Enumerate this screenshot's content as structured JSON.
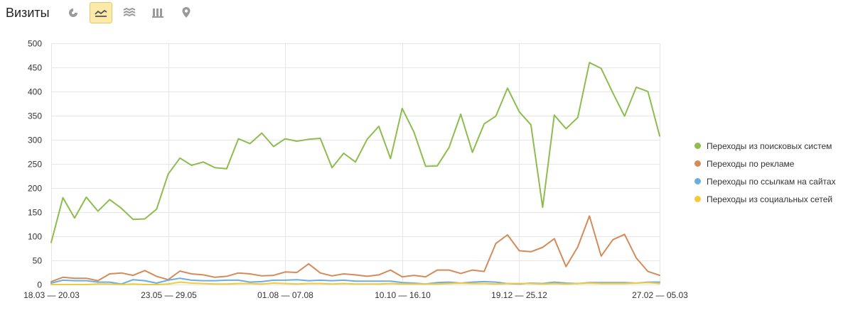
{
  "header": {
    "title": "Визиты",
    "tools": [
      {
        "icon": "pie-chart-icon",
        "active": false
      },
      {
        "icon": "line-chart-icon",
        "active": true
      },
      {
        "icon": "area-chart-icon",
        "active": false
      },
      {
        "icon": "bar-chart-icon",
        "active": false
      },
      {
        "icon": "map-pin-icon",
        "active": false
      }
    ]
  },
  "colors": {
    "search": "#8cbd4e",
    "ads": "#d48b5a",
    "links": "#6aaee0",
    "social": "#f5c83a",
    "grid": "#e6e6e6",
    "axis_text": "#333333"
  },
  "chart_data": {
    "type": "line",
    "title": "",
    "xlabel": "",
    "ylabel": "",
    "ylim": [
      0,
      500
    ],
    "yticks": [
      0,
      50,
      100,
      150,
      200,
      250,
      300,
      350,
      400,
      450,
      500
    ],
    "xtick_labels": [
      "18.03 — 20.03",
      "23.05 — 29.05",
      "01.08 — 07.08",
      "10.10 — 16.10",
      "19.12 — 25.12",
      "27.02 — 05.03"
    ],
    "xtick_index": [
      0,
      10,
      20,
      30,
      40,
      52
    ],
    "grid": true,
    "legend_position": "right",
    "series": [
      {
        "name": "Переходы из поисковых систем",
        "color_key": "search",
        "values": [
          87,
          180,
          138,
          181,
          152,
          176,
          158,
          135,
          136,
          156,
          229,
          262,
          247,
          254,
          242,
          240,
          302,
          292,
          314,
          286,
          302,
          297,
          301,
          303,
          242,
          272,
          254,
          301,
          328,
          261,
          365,
          316,
          245,
          246,
          284,
          353,
          274,
          333,
          349,
          407,
          358,
          331,
          160,
          351,
          323,
          346,
          460,
          448,
          397,
          349,
          409,
          400,
          308
        ]
      },
      {
        "name": "Переходы по рекламе",
        "color_key": "ads",
        "values": [
          6,
          15,
          13,
          13,
          8,
          22,
          24,
          19,
          29,
          17,
          10,
          28,
          22,
          20,
          15,
          17,
          24,
          22,
          18,
          19,
          26,
          25,
          43,
          24,
          18,
          22,
          20,
          17,
          20,
          30,
          16,
          19,
          16,
          30,
          30,
          23,
          30,
          27,
          85,
          103,
          70,
          68,
          77,
          95,
          37,
          78,
          142,
          59,
          93,
          104,
          55,
          27,
          19
        ]
      },
      {
        "name": "Переходы по ссылкам на сайтах",
        "color_key": "links",
        "values": [
          3,
          9,
          8,
          8,
          5,
          5,
          1,
          10,
          8,
          3,
          9,
          13,
          9,
          8,
          8,
          9,
          9,
          5,
          6,
          9,
          9,
          10,
          8,
          9,
          8,
          9,
          7,
          7,
          7,
          7,
          4,
          3,
          1,
          4,
          5,
          3,
          5,
          6,
          5,
          2,
          1,
          3,
          2,
          5,
          3,
          2,
          4,
          4,
          4,
          4,
          3,
          5,
          5
        ]
      },
      {
        "name": "Переходы из социальных сетей",
        "color_key": "social",
        "values": [
          0,
          0,
          0,
          0,
          1,
          1,
          0,
          1,
          0,
          0,
          1,
          5,
          3,
          2,
          1,
          1,
          2,
          2,
          1,
          3,
          2,
          1,
          2,
          2,
          1,
          2,
          1,
          1,
          1,
          2,
          1,
          1,
          1,
          1,
          2,
          3,
          2,
          2,
          1,
          2,
          2,
          2,
          1,
          2,
          1,
          2,
          3,
          2,
          2,
          2,
          3,
          4,
          2
        ]
      }
    ]
  }
}
